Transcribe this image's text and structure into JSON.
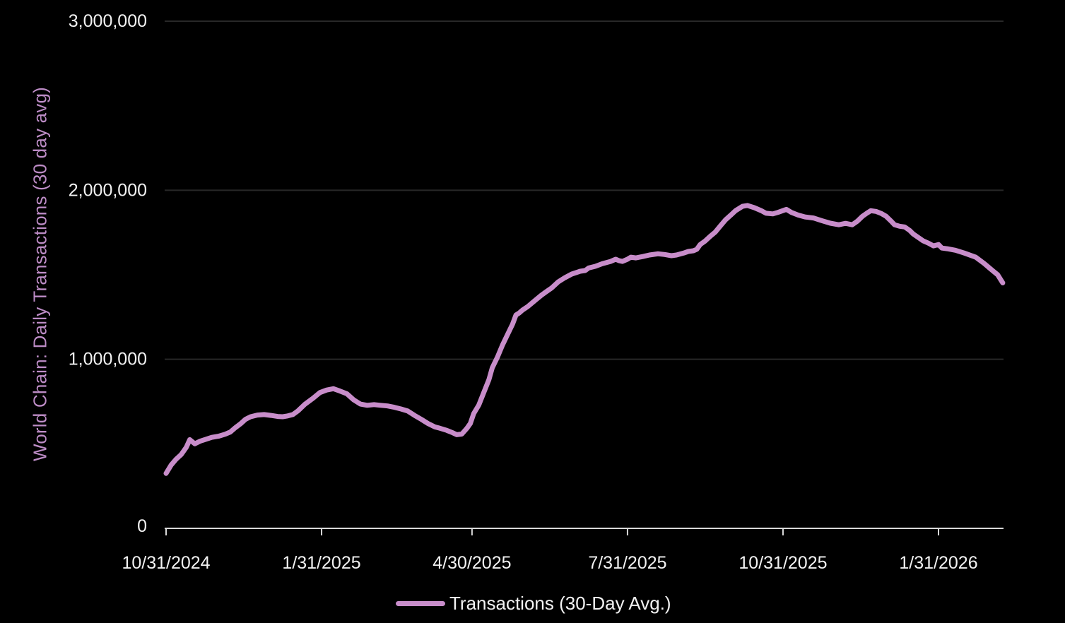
{
  "style": {
    "background": "#000000",
    "text_color": "#f2f2f2",
    "axis_color": "#d9d9d9",
    "grid_color": "#282828",
    "line_color": "#c88dca",
    "ylabel_color": "#bd8cc6"
  },
  "legend": {
    "label": "Transactions (30-Day Avg.)"
  },
  "chart_data": {
    "type": "line",
    "title": "",
    "xlabel": "",
    "ylabel": "World Chain: Daily Transactions (30 day avg)",
    "ylim": [
      0,
      3000000
    ],
    "y_tick_values": [
      0,
      1000000,
      2000000,
      3000000
    ],
    "y_tick_labels": [
      "0",
      "1,000,000",
      "2,000,000",
      "3,000,000"
    ],
    "x_tick_labels": [
      "10/31/2024",
      "1/31/2025",
      "4/30/2025",
      "7/31/2025",
      "10/31/2025",
      "1/31/2026"
    ],
    "x_end": "3/10/2026",
    "grid": "horizontal",
    "legend_position": "bottom-center",
    "series": [
      {
        "name": "Transactions (30-Day Avg.)",
        "color": "#c88dca",
        "points": [
          [
            "10/31/2024",
            325000
          ],
          [
            "11/3/2024",
            375000
          ],
          [
            "11/6/2024",
            410000
          ],
          [
            "11/9/2024",
            437000
          ],
          [
            "11/12/2024",
            480000
          ],
          [
            "11/14/2024",
            525000
          ],
          [
            "11/17/2024",
            500000
          ],
          [
            "11/20/2024",
            515000
          ],
          [
            "11/24/2024",
            528000
          ],
          [
            "11/27/2024",
            538000
          ],
          [
            "12/1/2024",
            545000
          ],
          [
            "12/5/2024",
            557000
          ],
          [
            "12/8/2024",
            570000
          ],
          [
            "12/11/2024",
            596000
          ],
          [
            "12/14/2024",
            618000
          ],
          [
            "12/17/2024",
            645000
          ],
          [
            "12/20/2024",
            660000
          ],
          [
            "12/24/2024",
            670000
          ],
          [
            "12/28/2024",
            673000
          ],
          [
            "1/1/2025",
            668000
          ],
          [
            "1/5/2025",
            662000
          ],
          [
            "1/8/2025",
            660000
          ],
          [
            "1/11/2025",
            665000
          ],
          [
            "1/14/2025",
            673000
          ],
          [
            "1/17/2025",
            695000
          ],
          [
            "1/21/2025",
            733000
          ],
          [
            "1/26/2025",
            770000
          ],
          [
            "1/30/2025",
            803000
          ],
          [
            "2/3/2025",
            818000
          ],
          [
            "2/7/2025",
            826000
          ],
          [
            "2/11/2025",
            812000
          ],
          [
            "2/15/2025",
            796000
          ],
          [
            "2/19/2025",
            760000
          ],
          [
            "2/23/2025",
            735000
          ],
          [
            "2/27/2025",
            728000
          ],
          [
            "3/3/2025",
            732000
          ],
          [
            "3/7/2025",
            728000
          ],
          [
            "3/11/2025",
            724000
          ],
          [
            "3/15/2025",
            716000
          ],
          [
            "3/19/2025",
            706000
          ],
          [
            "3/23/2025",
            694000
          ],
          [
            "3/27/2025",
            668000
          ],
          [
            "3/31/2025",
            645000
          ],
          [
            "4/4/2025",
            620000
          ],
          [
            "4/8/2025",
            600000
          ],
          [
            "4/11/2025",
            592000
          ],
          [
            "4/15/2025",
            580000
          ],
          [
            "4/18/2025",
            568000
          ],
          [
            "4/21/2025",
            554000
          ],
          [
            "4/24/2025",
            558000
          ],
          [
            "4/27/2025",
            592000
          ],
          [
            "4/29/2025",
            620000
          ],
          [
            "5/1/2025",
            679000
          ],
          [
            "5/4/2025",
            729000
          ],
          [
            "5/7/2025",
            804000
          ],
          [
            "5/10/2025",
            879000
          ],
          [
            "5/12/2025",
            950000
          ],
          [
            "5/15/2025",
            1012000
          ],
          [
            "5/18/2025",
            1083000
          ],
          [
            "5/21/2025",
            1146000
          ],
          [
            "5/24/2025",
            1208000
          ],
          [
            "5/26/2025",
            1262000
          ],
          [
            "5/28/2025",
            1275000
          ],
          [
            "5/30/2025",
            1292000
          ],
          [
            "6/2/2025",
            1312000
          ],
          [
            "6/6/2025",
            1346000
          ],
          [
            "6/10/2025",
            1379000
          ],
          [
            "6/13/2025",
            1400000
          ],
          [
            "6/16/2025",
            1421000
          ],
          [
            "6/20/2025",
            1458000
          ],
          [
            "6/24/2025",
            1483000
          ],
          [
            "6/28/2025",
            1504000
          ],
          [
            "7/3/2025",
            1521000
          ],
          [
            "7/6/2025",
            1525000
          ],
          [
            "7/8/2025",
            1540000
          ],
          [
            "7/12/2025",
            1550000
          ],
          [
            "7/16/2025",
            1565000
          ],
          [
            "7/21/2025",
            1579000
          ],
          [
            "7/24/2025",
            1592000
          ],
          [
            "7/26/2025",
            1583000
          ],
          [
            "7/28/2025",
            1579000
          ],
          [
            "7/31/2025",
            1592000
          ],
          [
            "8/2/2025",
            1604000
          ],
          [
            "8/5/2025",
            1600000
          ],
          [
            "8/9/2025",
            1608000
          ],
          [
            "8/13/2025",
            1617000
          ],
          [
            "8/18/2025",
            1624000
          ],
          [
            "8/22/2025",
            1620000
          ],
          [
            "8/26/2025",
            1613000
          ],
          [
            "8/29/2025",
            1617000
          ],
          [
            "9/2/2025",
            1628000
          ],
          [
            "9/5/2025",
            1638000
          ],
          [
            "9/8/2025",
            1642000
          ],
          [
            "9/10/2025",
            1651000
          ],
          [
            "9/12/2025",
            1679000
          ],
          [
            "9/15/2025",
            1700000
          ],
          [
            "9/18/2025",
            1728000
          ],
          [
            "9/21/2025",
            1753000
          ],
          [
            "9/24/2025",
            1790000
          ],
          [
            "9/27/2025",
            1825000
          ],
          [
            "9/30/2025",
            1852000
          ],
          [
            "10/3/2025",
            1880000
          ],
          [
            "10/7/2025",
            1905000
          ],
          [
            "10/10/2025",
            1910000
          ],
          [
            "10/14/2025",
            1897000
          ],
          [
            "10/18/2025",
            1880000
          ],
          [
            "10/21/2025",
            1864000
          ],
          [
            "10/25/2025",
            1860000
          ],
          [
            "10/28/2025",
            1869000
          ],
          [
            "11/2/2025",
            1887000
          ],
          [
            "11/5/2025",
            1869000
          ],
          [
            "11/9/2025",
            1853000
          ],
          [
            "11/13/2025",
            1842000
          ],
          [
            "11/18/2025",
            1836000
          ],
          [
            "11/23/2025",
            1820000
          ],
          [
            "11/28/2025",
            1805000
          ],
          [
            "12/3/2025",
            1796000
          ],
          [
            "12/7/2025",
            1804000
          ],
          [
            "12/11/2025",
            1796000
          ],
          [
            "12/14/2025",
            1817000
          ],
          [
            "12/17/2025",
            1846000
          ],
          [
            "12/20/2025",
            1867000
          ],
          [
            "12/22/2025",
            1879000
          ],
          [
            "12/25/2025",
            1875000
          ],
          [
            "12/28/2025",
            1863000
          ],
          [
            "12/31/2025",
            1846000
          ],
          [
            "1/3/2026",
            1817000
          ],
          [
            "1/5/2026",
            1796000
          ],
          [
            "1/8/2026",
            1787000
          ],
          [
            "1/11/2026",
            1783000
          ],
          [
            "1/14/2026",
            1762000
          ],
          [
            "1/16/2026",
            1742000
          ],
          [
            "1/19/2026",
            1721000
          ],
          [
            "1/22/2026",
            1700000
          ],
          [
            "1/25/2026",
            1687000
          ],
          [
            "1/28/2026",
            1671000
          ],
          [
            "1/31/2026",
            1679000
          ],
          [
            "2/2/2026",
            1658000
          ],
          [
            "2/5/2026",
            1654000
          ],
          [
            "2/10/2026",
            1645000
          ],
          [
            "2/15/2026",
            1629000
          ],
          [
            "2/22/2026",
            1604000
          ],
          [
            "2/27/2026",
            1567000
          ],
          [
            "3/3/2026",
            1533000
          ],
          [
            "3/7/2026",
            1500000
          ],
          [
            "3/10/2026",
            1452000
          ]
        ]
      }
    ]
  }
}
